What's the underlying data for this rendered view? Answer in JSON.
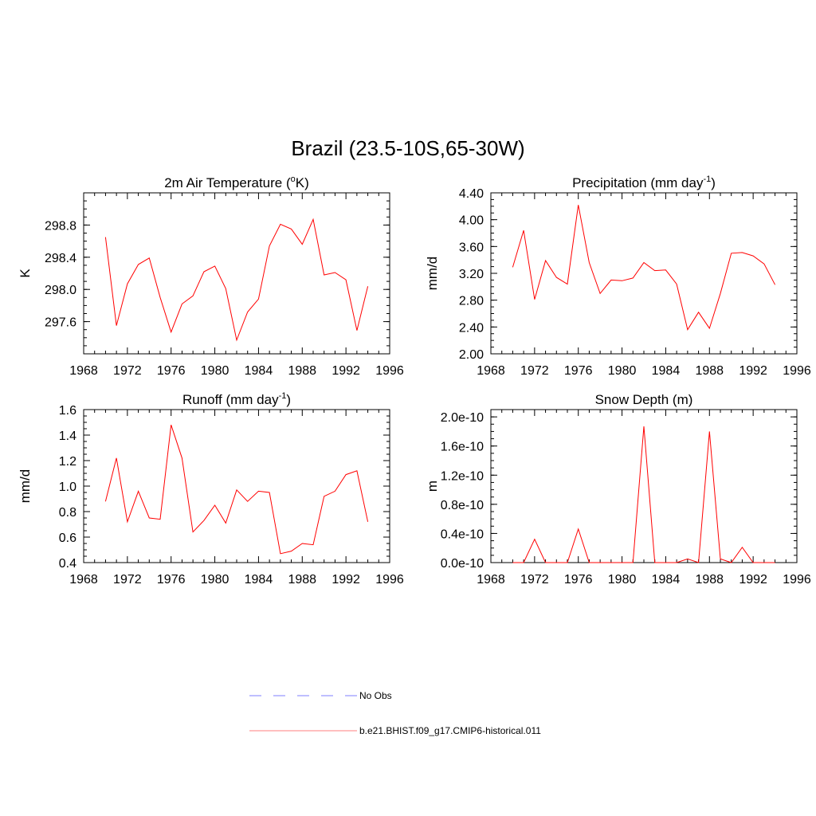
{
  "title": "Brazil (23.5-10S,65-30W)",
  "line_color": "#ff0000",
  "obs_color": "#9999ff",
  "legend": {
    "items": [
      {
        "label": "No Obs",
        "style": "dashed",
        "color": "#9999ff"
      },
      {
        "label": "b.e21.BHIST.f09_g17.CMIP6-historical.011",
        "style": "solid",
        "color": "#ff0000"
      }
    ]
  },
  "chart_data": [
    {
      "type": "line",
      "title": "2m Air Temperature (",
      "title_sup": "o",
      "title_tail": "K)",
      "ylabel": "K",
      "xlim": [
        1968,
        1996
      ],
      "ylim": [
        297.2,
        299.2
      ],
      "x_ticks": [
        1968,
        1972,
        1976,
        1980,
        1984,
        1988,
        1992,
        1996
      ],
      "y_ticks": [
        297.6,
        298.0,
        298.4,
        298.8
      ],
      "y_tick_labels": [
        "297.6",
        "298.0",
        "298.4",
        "298.8"
      ],
      "x": [
        1970,
        1971,
        1972,
        1973,
        1974,
        1975,
        1976,
        1977,
        1978,
        1979,
        1980,
        1981,
        1982,
        1983,
        1984,
        1985,
        1986,
        1987,
        1988,
        1989,
        1990,
        1991,
        1992,
        1993,
        1994
      ],
      "series": [
        {
          "values": [
            298.65,
            297.55,
            298.07,
            298.31,
            298.39,
            297.9,
            297.47,
            297.82,
            297.92,
            298.22,
            298.29,
            298.01,
            297.37,
            297.72,
            297.88,
            298.54,
            298.81,
            298.75,
            298.56,
            298.87,
            298.18,
            298.21,
            298.12,
            297.49,
            298.04
          ]
        }
      ]
    },
    {
      "type": "line",
      "title": "Precipitation (mm day",
      "title_sup": "-1",
      "title_tail": ")",
      "ylabel": "mm/d",
      "xlim": [
        1968,
        1996
      ],
      "ylim": [
        2.0,
        4.4
      ],
      "x_ticks": [
        1968,
        1972,
        1976,
        1980,
        1984,
        1988,
        1992,
        1996
      ],
      "y_ticks": [
        2.0,
        2.4,
        2.8,
        3.2,
        3.6,
        4.0,
        4.4
      ],
      "y_tick_labels": [
        "2.00",
        "2.40",
        "2.80",
        "3.20",
        "3.60",
        "4.00",
        "4.40"
      ],
      "x": [
        1970,
        1971,
        1972,
        1973,
        1974,
        1975,
        1976,
        1977,
        1978,
        1979,
        1980,
        1981,
        1982,
        1983,
        1984,
        1985,
        1986,
        1987,
        1988,
        1989,
        1990,
        1991,
        1992,
        1993,
        1994
      ],
      "series": [
        {
          "values": [
            3.29,
            3.84,
            2.81,
            3.39,
            3.14,
            3.04,
            4.22,
            3.36,
            2.9,
            3.1,
            3.09,
            3.13,
            3.36,
            3.24,
            3.25,
            3.04,
            2.36,
            2.62,
            2.38,
            2.9,
            3.5,
            3.51,
            3.46,
            3.34,
            3.03
          ]
        }
      ]
    },
    {
      "type": "line",
      "title": "Runoff (mm day",
      "title_sup": "-1",
      "title_tail": ")",
      "ylabel": "mm/d",
      "xlim": [
        1968,
        1996
      ],
      "ylim": [
        0.4,
        1.6
      ],
      "x_ticks": [
        1968,
        1972,
        1976,
        1980,
        1984,
        1988,
        1992,
        1996
      ],
      "y_ticks": [
        0.4,
        0.6,
        0.8,
        1.0,
        1.2,
        1.4,
        1.6
      ],
      "y_tick_labels": [
        "0.4",
        "0.6",
        "0.8",
        "1.0",
        "1.2",
        "1.4",
        "1.6"
      ],
      "x": [
        1970,
        1971,
        1972,
        1973,
        1974,
        1975,
        1976,
        1977,
        1978,
        1979,
        1980,
        1981,
        1982,
        1983,
        1984,
        1985,
        1986,
        1987,
        1988,
        1989,
        1990,
        1991,
        1992,
        1993,
        1994
      ],
      "series": [
        {
          "values": [
            0.88,
            1.22,
            0.72,
            0.96,
            0.75,
            0.74,
            1.48,
            1.22,
            0.64,
            0.73,
            0.85,
            0.71,
            0.97,
            0.88,
            0.96,
            0.95,
            0.47,
            0.49,
            0.55,
            0.54,
            0.92,
            0.96,
            1.09,
            1.12,
            0.72
          ]
        }
      ]
    },
    {
      "type": "line",
      "title": "Snow Depth (m)",
      "title_sup": "",
      "title_tail": "",
      "ylabel": "m",
      "xlim": [
        1968,
        1996
      ],
      "ylim": [
        0,
        2.1e-10
      ],
      "x_ticks": [
        1968,
        1972,
        1976,
        1980,
        1984,
        1988,
        1992,
        1996
      ],
      "y_ticks": [
        0,
        4e-11,
        8e-11,
        1.2e-10,
        1.6e-10,
        2e-10
      ],
      "y_tick_labels": [
        "0.0e-10",
        "0.4e-10",
        "0.8e-10",
        "1.2e-10",
        "1.6e-10",
        "2.0e-10"
      ],
      "x": [
        1970,
        1971,
        1972,
        1973,
        1974,
        1975,
        1976,
        1977,
        1978,
        1979,
        1980,
        1981,
        1982,
        1983,
        1984,
        1985,
        1986,
        1987,
        1988,
        1989,
        1990,
        1991,
        1992,
        1993,
        1994
      ],
      "series": [
        {
          "values": [
            0,
            0,
            3.2e-11,
            0,
            0,
            0,
            4.6e-11,
            0,
            0,
            0,
            0,
            0,
            1.87e-10,
            0,
            0,
            0,
            5e-12,
            0,
            1.8e-10,
            5e-12,
            0,
            2.1e-11,
            0,
            0,
            0
          ]
        }
      ]
    }
  ]
}
